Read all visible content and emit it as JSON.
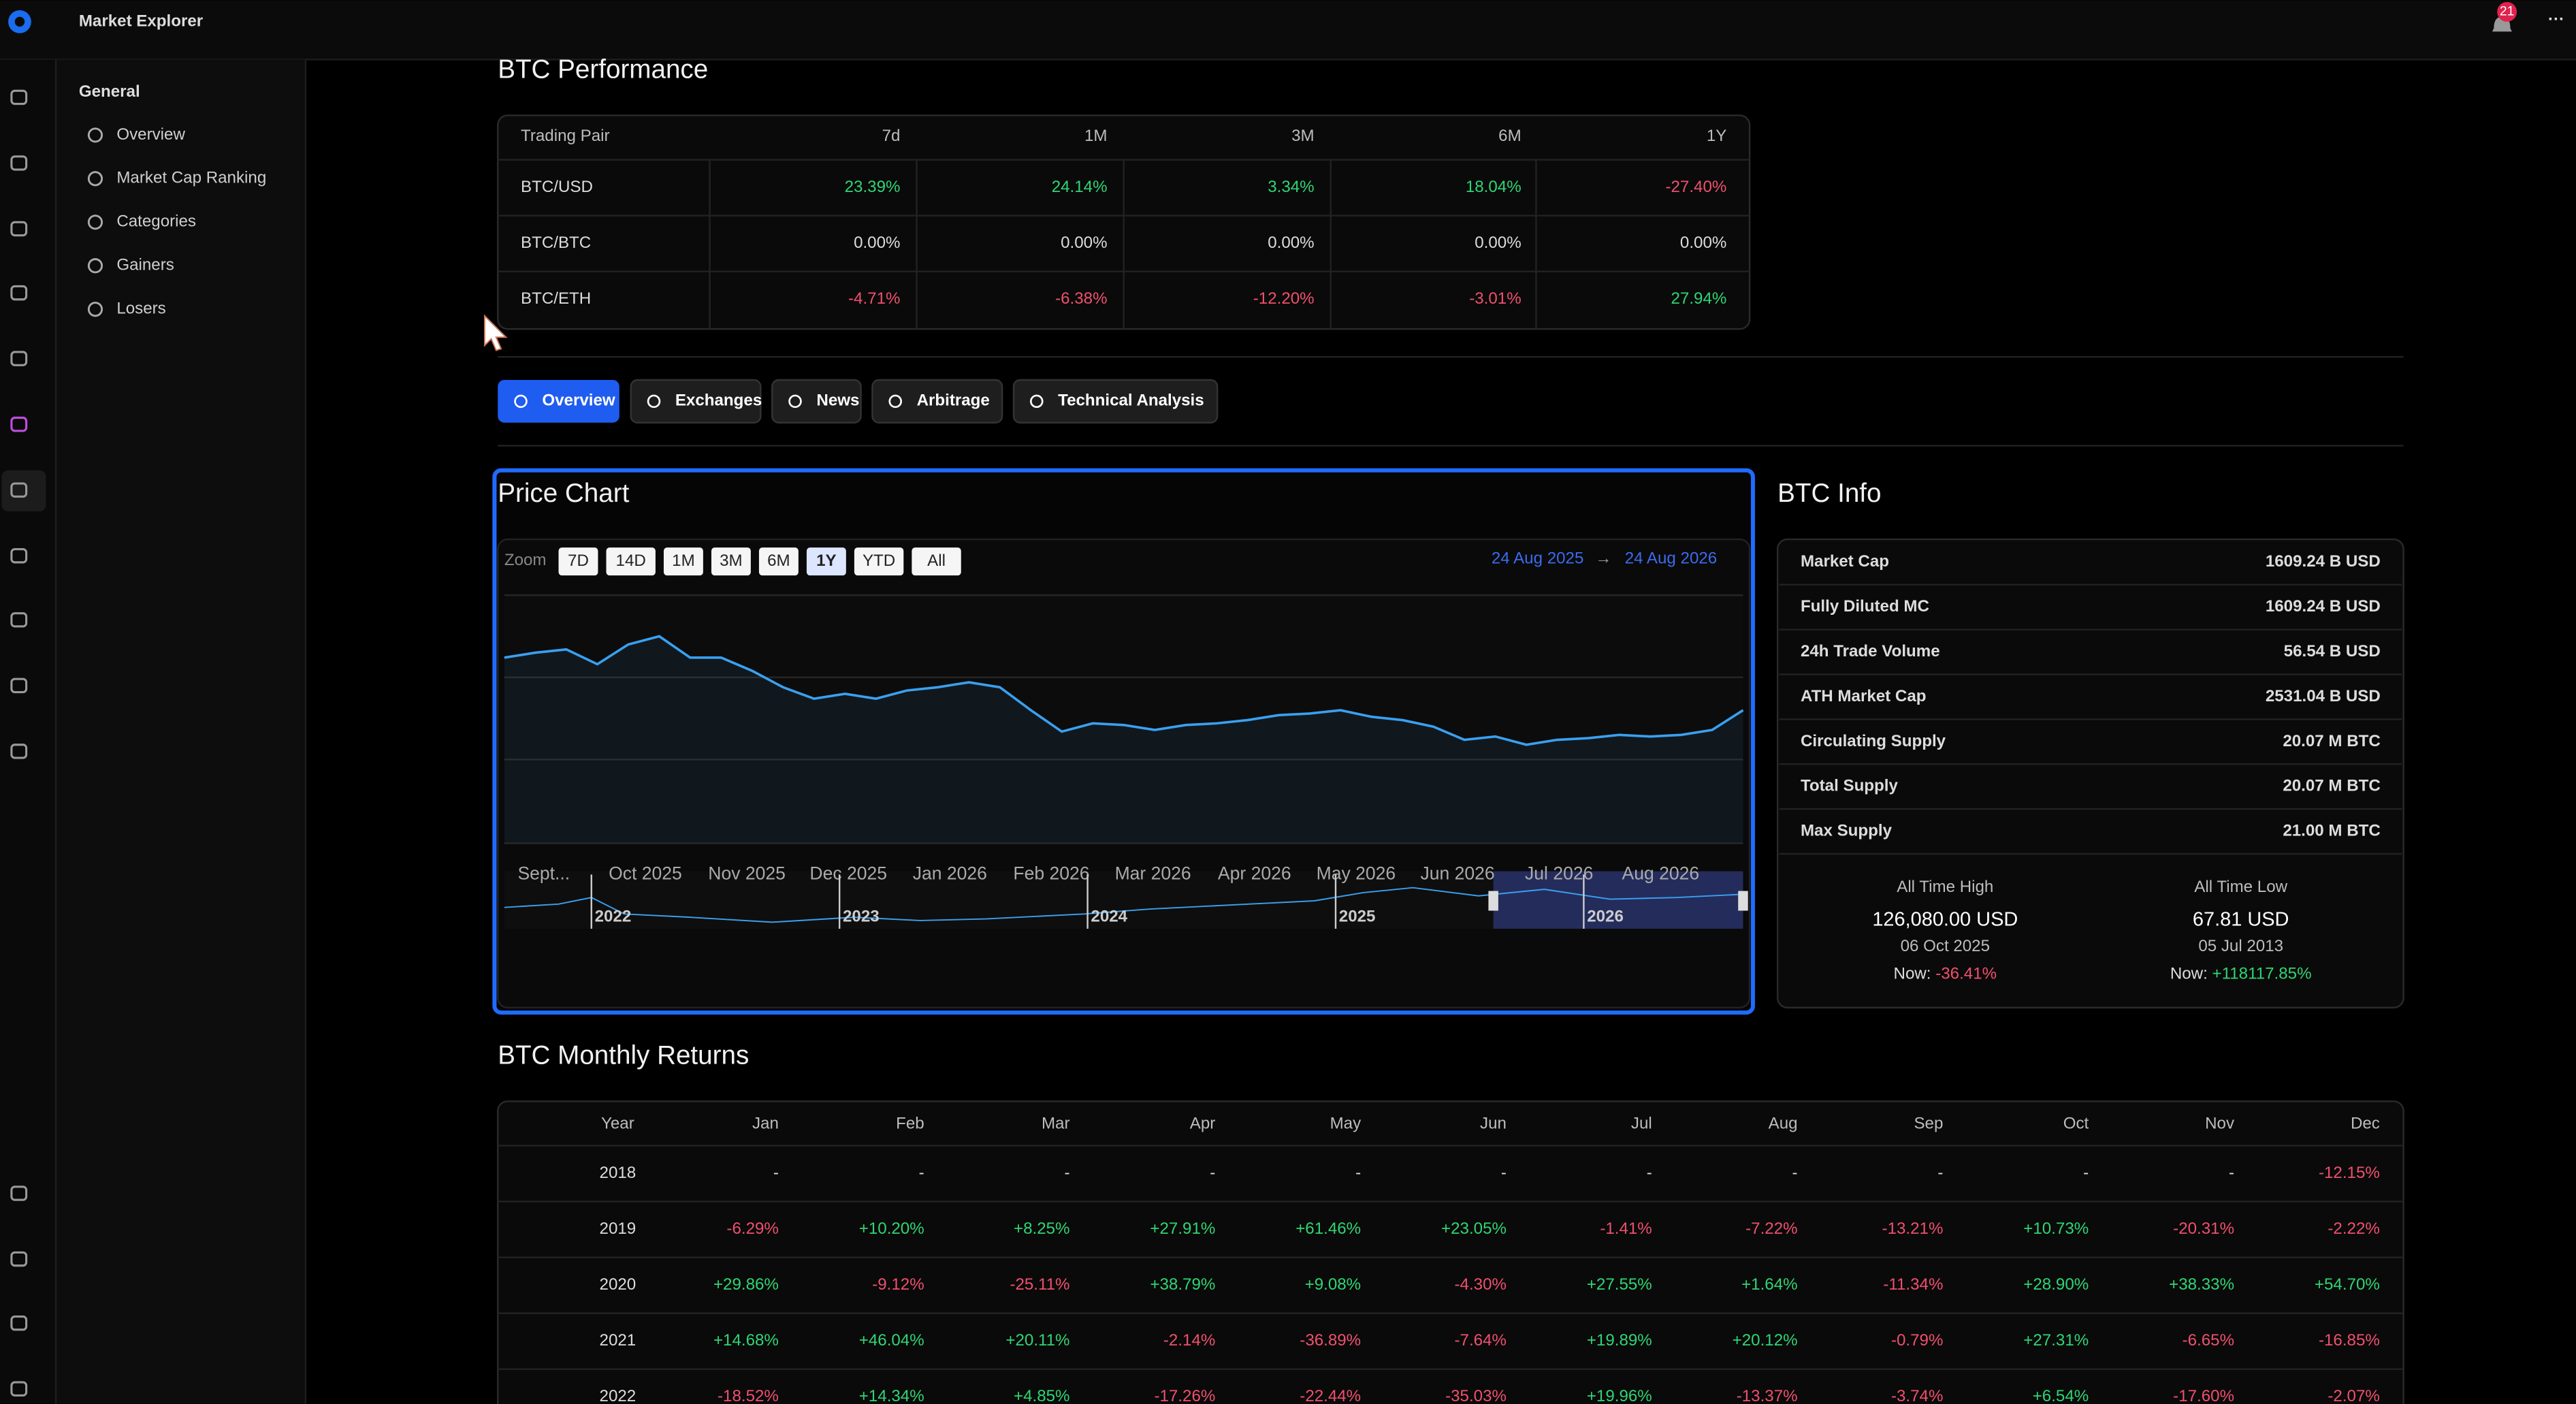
{
  "app": {
    "title": "Market Explorer",
    "notifications": "21"
  },
  "sidebar": {
    "heading": "General",
    "items": [
      "Overview",
      "Market Cap Ranking",
      "Categories",
      "Gainers",
      "Losers"
    ]
  },
  "performance": {
    "title": "BTC Performance",
    "columns": [
      "Trading Pair",
      "7d",
      "1M",
      "3M",
      "6M",
      "1Y"
    ],
    "rows": [
      [
        "BTC/USD",
        "23.39%",
        "24.14%",
        "3.34%",
        "18.04%",
        "-27.40%"
      ],
      [
        "BTC/BTC",
        "0.00%",
        "0.00%",
        "0.00%",
        "0.00%",
        "0.00%"
      ],
      [
        "BTC/ETH",
        "-4.71%",
        "-6.38%",
        "-12.20%",
        "-3.01%",
        "27.94%"
      ]
    ]
  },
  "tabs": [
    "Overview",
    "Exchanges",
    "News",
    "Arbitrage",
    "Technical Analysis"
  ],
  "price_chart": {
    "type": "line",
    "title": "Price Chart",
    "zoom_label": "Zoom",
    "zoom_options": [
      "7D",
      "14D",
      "1M",
      "3M",
      "6M",
      "1Y",
      "YTD",
      "All"
    ],
    "selected_zoom": "1Y",
    "range_from": "24 Aug 2025",
    "range_to": "24 Aug 2026",
    "x_labels": [
      "Sept...",
      "Oct 2025",
      "Nov 2025",
      "Dec 2025",
      "Jan 2026",
      "Feb 2026",
      "Mar 2026",
      "Apr 2026",
      "May 2026",
      "Jun 2026",
      "Jul 2026",
      "Aug 2026"
    ],
    "values": [
      112820,
      115880,
      117920,
      108740,
      121000,
      126080,
      112820,
      112820,
      104660,
      94460,
      87320,
      90380,
      87320,
      92420,
      94460,
      97520,
      94460,
      80180,
      66920,
      72020,
      71000,
      67940,
      71000,
      72020,
      74060,
      77120,
      78140,
      80180,
      76100,
      74060,
      70000,
      61820,
      63860,
      58760,
      61820,
      62840,
      64880,
      63860,
      64880,
      67940,
      80180
    ],
    "color": "#3aa0f0",
    "navigator_labels": [
      "2022",
      "2023",
      "2024",
      "2025",
      "2026"
    ]
  },
  "info": {
    "title": "BTC Info",
    "rows": [
      [
        "Market Cap",
        "1609.24 B USD"
      ],
      [
        "Fully Diluted MC",
        "1609.24 B USD"
      ],
      [
        "24h Trade Volume",
        "56.54 B USD"
      ],
      [
        "ATH Market Cap",
        "2531.04 B USD"
      ],
      [
        "Circulating Supply",
        "20.07 M BTC"
      ],
      [
        "Total Supply",
        "20.07 M BTC"
      ],
      [
        "Max Supply",
        "21.00 M BTC"
      ]
    ],
    "ath": {
      "label": "All Time High",
      "value": "126,080.00 USD",
      "date": "06 Oct 2025",
      "now_label": "Now:",
      "now": "-36.41%"
    },
    "atl": {
      "label": "All Time Low",
      "value": "67.81 USD",
      "date": "05 Jul 2013",
      "now_label": "Now:",
      "now": "+118117.85%"
    }
  },
  "monthly": {
    "title": "BTC Monthly Returns",
    "columns": [
      "Year",
      "Jan",
      "Feb",
      "Mar",
      "Apr",
      "May",
      "Jun",
      "Jul",
      "Aug",
      "Sep",
      "Oct",
      "Nov",
      "Dec"
    ],
    "rows": [
      [
        "2018",
        "-",
        "-",
        "-",
        "-",
        "-",
        "-",
        "-",
        "-",
        "-",
        "-",
        "-",
        "-12.15%"
      ],
      [
        "2019",
        "-6.29%",
        "+10.20%",
        "+8.25%",
        "+27.91%",
        "+61.46%",
        "+23.05%",
        "-1.41%",
        "-7.22%",
        "-13.21%",
        "+10.73%",
        "-20.31%",
        "-2.22%"
      ],
      [
        "2020",
        "+29.86%",
        "-9.12%",
        "-25.11%",
        "+38.79%",
        "+9.08%",
        "-4.30%",
        "+27.55%",
        "+1.64%",
        "-11.34%",
        "+28.90%",
        "+38.33%",
        "+54.70%"
      ],
      [
        "2021",
        "+14.68%",
        "+46.04%",
        "+20.11%",
        "-2.14%",
        "-36.89%",
        "-7.64%",
        "+19.89%",
        "+20.12%",
        "-0.79%",
        "+27.31%",
        "-6.65%",
        "-16.85%"
      ],
      [
        "2022",
        "-18.52%",
        "+14.34%",
        "+4.85%",
        "-17.26%",
        "-22.44%",
        "-35.03%",
        "+19.96%",
        "-13.37%",
        "-3.74%",
        "+6.54%",
        "-17.60%",
        "-2.07%"
      ]
    ]
  }
}
